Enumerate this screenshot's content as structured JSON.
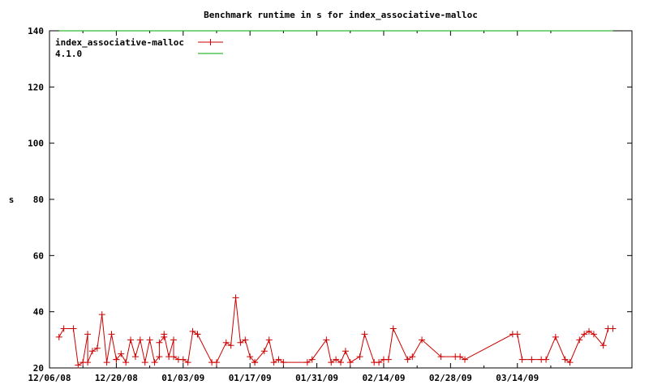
{
  "chart_data": {
    "type": "line",
    "title": "Benchmark runtime in s for index_associative-malloc",
    "xlabel": "",
    "ylabel": "s",
    "xlim": [
      "2008-12-06",
      "2009-04-07"
    ],
    "ylim": [
      20,
      140
    ],
    "x_ticks": [
      "12/06/08",
      "12/20/08",
      "01/03/09",
      "01/17/09",
      "01/31/09",
      "02/14/09",
      "02/28/09",
      "03/14/09"
    ],
    "y_ticks": [
      20,
      40,
      60,
      80,
      100,
      120,
      140
    ],
    "grid": false,
    "legend_position": "top-left",
    "colors": {
      "series": "#cc0000",
      "baseline": "#00aa00",
      "axes": "#000000"
    },
    "series": [
      {
        "name": "index_associative-malloc",
        "marker": "plus",
        "color": "#cc0000",
        "x": [
          "2008-12-08",
          "2008-12-09",
          "2008-12-11",
          "2008-12-12",
          "2008-12-13",
          "2008-12-14",
          "2008-12-14",
          "2008-12-15",
          "2008-12-16",
          "2008-12-17",
          "2008-12-18",
          "2008-12-19",
          "2008-12-20",
          "2008-12-20",
          "2008-12-21",
          "2008-12-22",
          "2008-12-23",
          "2008-12-24",
          "2008-12-25",
          "2008-12-26",
          "2008-12-27",
          "2008-12-28",
          "2008-12-29",
          "2008-12-29",
          "2008-12-30",
          "2008-12-30",
          "2008-12-31",
          "2009-01-01",
          "2009-01-01",
          "2009-01-02",
          "2009-01-03",
          "2009-01-04",
          "2009-01-05",
          "2009-01-06",
          "2009-01-06",
          "2009-01-09",
          "2009-01-10",
          "2009-01-12",
          "2009-01-13",
          "2009-01-14",
          "2009-01-15",
          "2009-01-16",
          "2009-01-17",
          "2009-01-18",
          "2009-01-18",
          "2009-01-20",
          "2009-01-21",
          "2009-01-22",
          "2009-01-23",
          "2009-01-24",
          "2009-01-29",
          "2009-01-30",
          "2009-02-02",
          "2009-02-03",
          "2009-02-04",
          "2009-02-05",
          "2009-02-06",
          "2009-02-07",
          "2009-02-09",
          "2009-02-10",
          "2009-02-12",
          "2009-02-13",
          "2009-02-14",
          "2009-02-15",
          "2009-02-16",
          "2009-02-19",
          "2009-02-20",
          "2009-02-22",
          "2009-02-26",
          "2009-03-01",
          "2009-03-02",
          "2009-03-03",
          "2009-03-13",
          "2009-03-14",
          "2009-03-15",
          "2009-03-17",
          "2009-03-19",
          "2009-03-20",
          "2009-03-22",
          "2009-03-24",
          "2009-03-25",
          "2009-03-27",
          "2009-03-28",
          "2009-03-29",
          "2009-03-30",
          "2009-04-01",
          "2009-04-02",
          "2009-04-03"
        ],
        "y": [
          31,
          34,
          34,
          21,
          22,
          32,
          22,
          26,
          27,
          39,
          22,
          32,
          23,
          23,
          25,
          22,
          30,
          24,
          30,
          22,
          30,
          22,
          24,
          29,
          31,
          32,
          24,
          30,
          24,
          23,
          23,
          22,
          33,
          32,
          32,
          22,
          22,
          29,
          28,
          45,
          29,
          30,
          24,
          22,
          22,
          26,
          30,
          22,
          23,
          22,
          22,
          23,
          30,
          22,
          23,
          22,
          26,
          22,
          24,
          32,
          22,
          22,
          23,
          23,
          34,
          23,
          24,
          30,
          24,
          24,
          24,
          23,
          32,
          32,
          23,
          23,
          23,
          23,
          31,
          23,
          22,
          30,
          32,
          33,
          32,
          28,
          34,
          34
        ]
      },
      {
        "name": "4.1.0",
        "marker": "none",
        "color": "#00aa00",
        "x": [
          "2008-12-08",
          "2009-04-03"
        ],
        "y": [
          140,
          140
        ]
      }
    ]
  }
}
